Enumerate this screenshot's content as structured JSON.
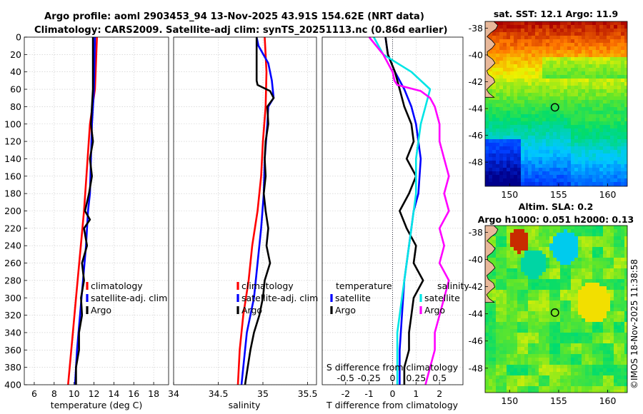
{
  "header": {
    "title_line1": "Argo profile: aoml 2903453_94 13-Nov-2025 43.91S 154.62E (NRT data)",
    "title_line2": "Climatology: CARS2009. Satellite-adj clim: synTS_20251113.nc (0.86d earlier)"
  },
  "credit": "©IMOS 18-Nov-2025 11:38:58",
  "colors": {
    "climatology": "#ff0000",
    "satellite": "#0000ff",
    "argo": "#000000",
    "argo_salinity_diff": "#ff00ff",
    "sat_salinity_diff": "#00e5e5"
  },
  "chart_data": [
    {
      "type": "line",
      "name": "temperature-profile",
      "xlabel": "temperature (deg C)",
      "ylabel": "",
      "xlim": [
        5,
        19.5
      ],
      "ylim": [
        0,
        400
      ],
      "xticks": [
        "6",
        "8",
        "10",
        "12",
        "14",
        "16",
        "18"
      ],
      "yticks": [
        "0",
        "20",
        "40",
        "60",
        "80",
        "100",
        "120",
        "140",
        "160",
        "180",
        "200",
        "220",
        "240",
        "260",
        "280",
        "300",
        "320",
        "340",
        "360",
        "380",
        "400"
      ],
      "legend": [
        "climatology",
        "satellite-adj. clim",
        "Argo"
      ],
      "series": [
        {
          "name": "climatology",
          "depth": [
            0,
            60,
            100,
            150,
            200,
            250,
            300,
            350,
            400
          ],
          "values": [
            12.3,
            12.1,
            11.6,
            11.3,
            11.0,
            10.6,
            10.2,
            9.8,
            9.4
          ]
        },
        {
          "name": "satellite-adj. clim",
          "depth": [
            0,
            60,
            80,
            100,
            140,
            180,
            200,
            240,
            280,
            320,
            360,
            400
          ],
          "values": [
            12.1,
            12.0,
            11.9,
            11.8,
            11.7,
            11.6,
            11.4,
            11.2,
            10.9,
            10.6,
            10.3,
            10.1
          ]
        },
        {
          "name": "Argo",
          "depth": [
            0,
            20,
            40,
            60,
            80,
            100,
            120,
            140,
            160,
            180,
            200,
            210,
            220,
            240,
            260,
            280,
            300,
            320,
            340,
            360,
            380,
            400
          ],
          "values": [
            11.9,
            11.9,
            11.9,
            11.9,
            11.8,
            11.7,
            11.9,
            11.6,
            11.8,
            11.5,
            11.1,
            11.6,
            11.0,
            11.3,
            10.8,
            11.0,
            10.7,
            10.8,
            10.5,
            10.5,
            10.2,
            10.2
          ]
        }
      ]
    },
    {
      "type": "line",
      "name": "salinity-profile",
      "xlabel": "salinity",
      "ylabel": "",
      "xlim": [
        34,
        35.6
      ],
      "ylim": [
        0,
        400
      ],
      "xticks": [
        "34",
        "34.5",
        "35",
        "35.5"
      ],
      "legend": [
        "climatology",
        "satellite-adj. clim",
        "Argo"
      ],
      "series": [
        {
          "name": "climatology",
          "depth": [
            0,
            40,
            80,
            120,
            160,
            200,
            240,
            280,
            320,
            360,
            400
          ],
          "values": [
            35.02,
            35.04,
            35.03,
            35.0,
            34.98,
            34.94,
            34.88,
            34.84,
            34.78,
            34.74,
            34.72
          ]
        },
        {
          "name": "satellite-adj. clim",
          "depth": [
            0,
            10,
            30,
            50,
            70,
            80,
            100,
            140,
            180,
            220,
            260,
            300,
            340,
            380,
            400
          ],
          "values": [
            34.93,
            34.95,
            35.06,
            35.1,
            35.12,
            35.06,
            35.05,
            35.02,
            35.01,
            34.98,
            34.94,
            34.9,
            34.82,
            34.78,
            34.76
          ]
        },
        {
          "name": "Argo",
          "depth": [
            0,
            10,
            30,
            50,
            55,
            62,
            70,
            80,
            100,
            120,
            140,
            160,
            180,
            200,
            220,
            240,
            260,
            280,
            300,
            320,
            340,
            360,
            380,
            400
          ],
          "values": [
            34.93,
            34.93,
            34.93,
            34.93,
            34.94,
            35.08,
            35.12,
            35.05,
            35.06,
            35.03,
            35.02,
            35.03,
            35.01,
            35.03,
            35.06,
            35.04,
            35.08,
            35.02,
            35.0,
            34.96,
            34.9,
            34.86,
            34.83,
            34.8
          ]
        }
      ]
    },
    {
      "type": "line",
      "name": "difference-profile",
      "xlabel": "T difference from climatology",
      "x2label": "S difference from climatology",
      "xlim": [
        -3,
        3
      ],
      "ylim": [
        0,
        400
      ],
      "xticks": [
        "-2",
        "-1",
        "0",
        "1",
        "2"
      ],
      "x2ticks": [
        "-0.5",
        "-0.25",
        "0",
        "0.25",
        "0.5"
      ],
      "legend_temperature": [
        "temperature",
        "satellite",
        "Argo"
      ],
      "legend_salinity": [
        "salinity",
        "satellite",
        "Argo"
      ],
      "series": [
        {
          "name": "temperature satellite",
          "depth": [
            0,
            20,
            40,
            60,
            80,
            100,
            140,
            180,
            200,
            240,
            280,
            320,
            360,
            400
          ],
          "values": [
            -0.3,
            -0.2,
            0.1,
            0.5,
            0.8,
            1.0,
            1.2,
            1.1,
            0.9,
            0.7,
            0.5,
            0.4,
            0.3,
            0.3
          ]
        },
        {
          "name": "temperature Argo",
          "depth": [
            0,
            20,
            40,
            60,
            80,
            100,
            120,
            140,
            160,
            180,
            200,
            220,
            240,
            260,
            280,
            300,
            320,
            340,
            360,
            380,
            400
          ],
          "values": [
            -0.3,
            -0.2,
            0.1,
            0.3,
            0.5,
            0.8,
            0.9,
            0.6,
            1.0,
            0.7,
            0.3,
            0.6,
            1.0,
            0.9,
            1.3,
            0.9,
            0.8,
            0.7,
            0.7,
            0.5,
            0.5
          ]
        },
        {
          "name": "salinity satellite",
          "depth": [
            0,
            20,
            40,
            60,
            80,
            100,
            140,
            180,
            220,
            260,
            300,
            340,
            380,
            400
          ],
          "values": [
            -0.2,
            -0.1,
            0.2,
            0.4,
            0.35,
            0.3,
            0.25,
            0.25,
            0.2,
            0.15,
            0.1,
            0.05,
            0.05,
            0.05
          ]
        },
        {
          "name": "salinity Argo",
          "depth": [
            0,
            20,
            40,
            50,
            55,
            62,
            70,
            80,
            100,
            120,
            140,
            160,
            180,
            200,
            220,
            240,
            260,
            280,
            300,
            320,
            340,
            360,
            380,
            400
          ],
          "values": [
            -0.25,
            -0.1,
            0.0,
            0.02,
            0.05,
            0.3,
            0.4,
            0.45,
            0.5,
            0.5,
            0.55,
            0.6,
            0.55,
            0.6,
            0.5,
            0.55,
            0.5,
            0.6,
            0.55,
            0.5,
            0.45,
            0.45,
            0.4,
            0.35
          ]
        }
      ]
    },
    {
      "type": "heatmap",
      "name": "sst-map",
      "title": "sat. SST: 12.1 Argo: 11.9",
      "xticks": [
        "150",
        "155",
        "160"
      ],
      "yticks": [
        "-38",
        "-40",
        "-42",
        "-44",
        "-46",
        "-48"
      ],
      "xlim": [
        147.5,
        162
      ],
      "ylim": [
        -49.8,
        -37.5
      ],
      "marker": {
        "lon": 154.62,
        "lat": -43.91
      }
    },
    {
      "type": "heatmap",
      "name": "sla-map",
      "title_line1": "Altim. SLA: 0.2",
      "title_line2": "Argo h1000: 0.051 h2000: 0.13",
      "xticks": [
        "150",
        "155",
        "160"
      ],
      "yticks": [
        "-38",
        "-40",
        "-42",
        "-44",
        "-46",
        "-48"
      ],
      "xlim": [
        147.5,
        162
      ],
      "ylim": [
        -49.8,
        -37.5
      ],
      "marker": {
        "lon": 154.62,
        "lat": -43.91
      }
    }
  ]
}
